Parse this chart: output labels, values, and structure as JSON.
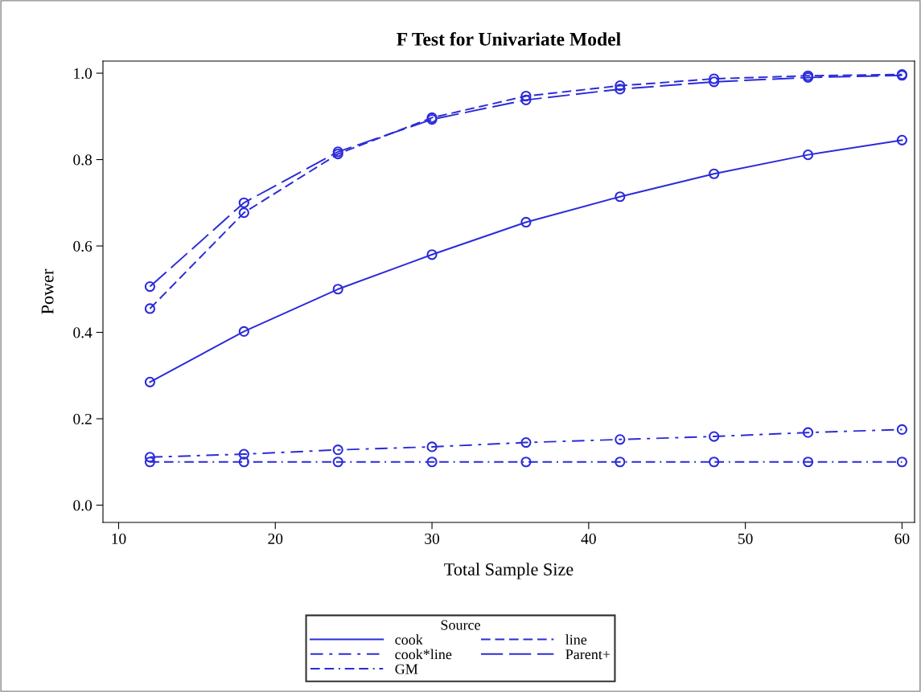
{
  "chart_data": {
    "type": "line",
    "title": "F Test for Univariate Model",
    "xlabel": "Total Sample Size",
    "ylabel": "Power",
    "legend_title": "Source",
    "legend": "bottom",
    "marker": "circle",
    "grid": false,
    "x": [
      12,
      18,
      24,
      30,
      36,
      42,
      48,
      54,
      60
    ],
    "xlim": [
      9,
      60.8
    ],
    "xticks": [
      10,
      20,
      30,
      40,
      50,
      60
    ],
    "ylim": [
      -0.04,
      1.028
    ],
    "yticks": [
      {
        "value": 0,
        "label": "0.0"
      },
      {
        "value": 0.2,
        "label": "0.2"
      },
      {
        "value": 0.4,
        "label": "0.4"
      },
      {
        "value": 0.6,
        "label": "0.6"
      },
      {
        "value": 0.8,
        "label": "0.8"
      },
      {
        "value": 1,
        "label": "1.0"
      }
    ],
    "series": [
      {
        "name": "cook",
        "color": "#2b2bd9",
        "line_style": "solid",
        "values": [
          0.285,
          0.402,
          0.5,
          0.58,
          0.655,
          0.714,
          0.767,
          0.811,
          0.845
        ]
      },
      {
        "name": "line",
        "color": "#2b2bd9",
        "line_style": "dashed",
        "values": [
          0.455,
          0.677,
          0.813,
          0.897,
          0.947,
          0.971,
          0.987,
          0.994,
          0.997
        ]
      },
      {
        "name": "cook*line",
        "color": "#2b2bd9",
        "line_style": "dashdot",
        "values": [
          0.111,
          0.118,
          0.128,
          0.135,
          0.145,
          0.152,
          0.159,
          0.168,
          0.175
        ]
      },
      {
        "name": "Parent+",
        "color": "#2b2bd9",
        "line_style": "longdash",
        "values": [
          0.506,
          0.7,
          0.818,
          0.893,
          0.938,
          0.963,
          0.98,
          0.99,
          0.995
        ]
      },
      {
        "name": "GM",
        "color": "#2b2bd9",
        "line_style": "dashdotdot",
        "values": [
          0.1,
          0.1,
          0.1,
          0.1,
          0.1,
          0.1,
          0.1,
          0.1,
          0.1
        ]
      }
    ]
  }
}
